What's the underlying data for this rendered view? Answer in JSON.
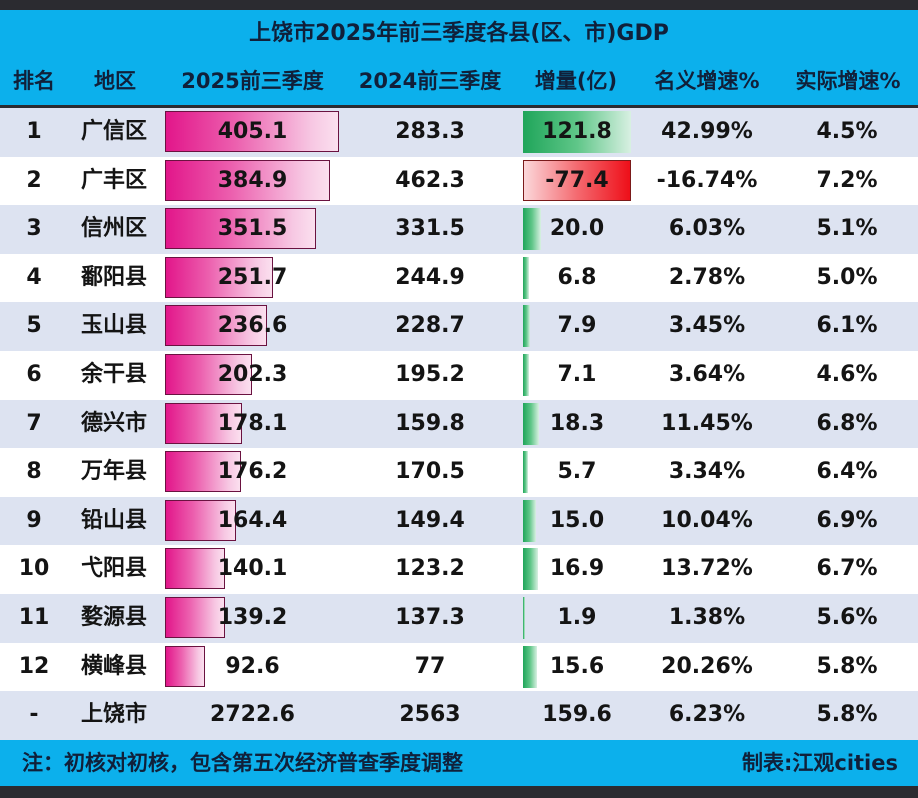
{
  "title": "上饶市2025年前三季度各县(区、市)GDP",
  "columns": {
    "rank": "排名",
    "region": "地区",
    "gdp_2025": "2025前三季度",
    "gdp_2024": "2024前三季度",
    "increase": "增量(亿)",
    "nominal_growth": "名义增速%",
    "real_growth": "实际增速%"
  },
  "rows": [
    {
      "rank": "1",
      "region": "广信区",
      "gdp_2025": "405.1",
      "gdp_2024": "283.3",
      "increase": "121.8",
      "nominal_growth": "42.99%",
      "real_growth": "4.5%"
    },
    {
      "rank": "2",
      "region": "广丰区",
      "gdp_2025": "384.9",
      "gdp_2024": "462.3",
      "increase": "-77.4",
      "nominal_growth": "-16.74%",
      "real_growth": "7.2%"
    },
    {
      "rank": "3",
      "region": "信州区",
      "gdp_2025": "351.5",
      "gdp_2024": "331.5",
      "increase": "20.0",
      "nominal_growth": "6.03%",
      "real_growth": "5.1%"
    },
    {
      "rank": "4",
      "region": "鄱阳县",
      "gdp_2025": "251.7",
      "gdp_2024": "244.9",
      "increase": "6.8",
      "nominal_growth": "2.78%",
      "real_growth": "5.0%"
    },
    {
      "rank": "5",
      "region": "玉山县",
      "gdp_2025": "236.6",
      "gdp_2024": "228.7",
      "increase": "7.9",
      "nominal_growth": "3.45%",
      "real_growth": "6.1%"
    },
    {
      "rank": "6",
      "region": "余干县",
      "gdp_2025": "202.3",
      "gdp_2024": "195.2",
      "increase": "7.1",
      "nominal_growth": "3.64%",
      "real_growth": "4.6%"
    },
    {
      "rank": "7",
      "region": "德兴市",
      "gdp_2025": "178.1",
      "gdp_2024": "159.8",
      "increase": "18.3",
      "nominal_growth": "11.45%",
      "real_growth": "6.8%"
    },
    {
      "rank": "8",
      "region": "万年县",
      "gdp_2025": "176.2",
      "gdp_2024": "170.5",
      "increase": "5.7",
      "nominal_growth": "3.34%",
      "real_growth": "6.4%"
    },
    {
      "rank": "9",
      "region": "铅山县",
      "gdp_2025": "164.4",
      "gdp_2024": "149.4",
      "increase": "15.0",
      "nominal_growth": "10.04%",
      "real_growth": "6.9%"
    },
    {
      "rank": "10",
      "region": "弋阳县",
      "gdp_2025": "140.1",
      "gdp_2024": "123.2",
      "increase": "16.9",
      "nominal_growth": "13.72%",
      "real_growth": "6.7%"
    },
    {
      "rank": "11",
      "region": "婺源县",
      "gdp_2025": "139.2",
      "gdp_2024": "137.3",
      "increase": "1.9",
      "nominal_growth": "1.38%",
      "real_growth": "5.6%"
    },
    {
      "rank": "12",
      "region": "横峰县",
      "gdp_2025": "92.6",
      "gdp_2024": "77",
      "increase": "15.6",
      "nominal_growth": "20.26%",
      "real_growth": "5.8%"
    },
    {
      "rank": "-",
      "region": "上饶市",
      "gdp_2025": "2722.6",
      "gdp_2024": "2563",
      "increase": "159.6",
      "nominal_growth": "6.23%",
      "real_growth": "5.8%"
    }
  ],
  "footer": {
    "note": "注：初核对初核，包含第五次经济普查季度调整",
    "credit": "制表:江观cities"
  },
  "colors": {
    "header_bg": "#0cb0ec",
    "row_alt_bg": "#dde3f1",
    "bar_gdp": "#e2168a",
    "bar_increase_pos": "#1fa55a",
    "bar_increase_neg": "#ee0f19"
  },
  "chart_data": {
    "type": "table",
    "title": "上饶市2025年前三季度各县(区、市)GDP",
    "columns": [
      "排名",
      "地区",
      "2025前三季度",
      "2024前三季度",
      "增量(亿)",
      "名义增速%",
      "实际增速%"
    ],
    "categories": [
      "广信区",
      "广丰区",
      "信州区",
      "鄱阳县",
      "玉山县",
      "余干县",
      "德兴市",
      "万年县",
      "铅山县",
      "弋阳县",
      "婺源县",
      "横峰县"
    ],
    "series": [
      {
        "name": "2025前三季度",
        "values": [
          405.1,
          384.9,
          351.5,
          251.7,
          236.6,
          202.3,
          178.1,
          176.2,
          164.4,
          140.1,
          139.2,
          92.6
        ]
      },
      {
        "name": "2024前三季度",
        "values": [
          283.3,
          462.3,
          331.5,
          244.9,
          228.7,
          195.2,
          159.8,
          170.5,
          149.4,
          123.2,
          137.3,
          77
        ]
      },
      {
        "name": "增量(亿)",
        "values": [
          121.8,
          -77.4,
          20.0,
          6.8,
          7.9,
          7.1,
          18.3,
          5.7,
          15.0,
          16.9,
          1.9,
          15.6
        ]
      },
      {
        "name": "名义增速%",
        "values": [
          42.99,
          -16.74,
          6.03,
          2.78,
          3.45,
          3.64,
          11.45,
          3.34,
          10.04,
          13.72,
          1.38,
          20.26
        ]
      },
      {
        "name": "实际增速%",
        "values": [
          4.5,
          7.2,
          5.1,
          5.0,
          6.1,
          4.6,
          6.8,
          6.4,
          6.9,
          6.7,
          5.6,
          5.8
        ]
      }
    ],
    "total": {
      "region": "上饶市",
      "gdp_2025": 2722.6,
      "gdp_2024": 2563,
      "increase": 159.6,
      "nominal_growth": 6.23,
      "real_growth": 5.8
    },
    "annotations": [
      "注：初核对初核，包含第五次经济普查季度调整",
      "制表:江观cities"
    ]
  }
}
